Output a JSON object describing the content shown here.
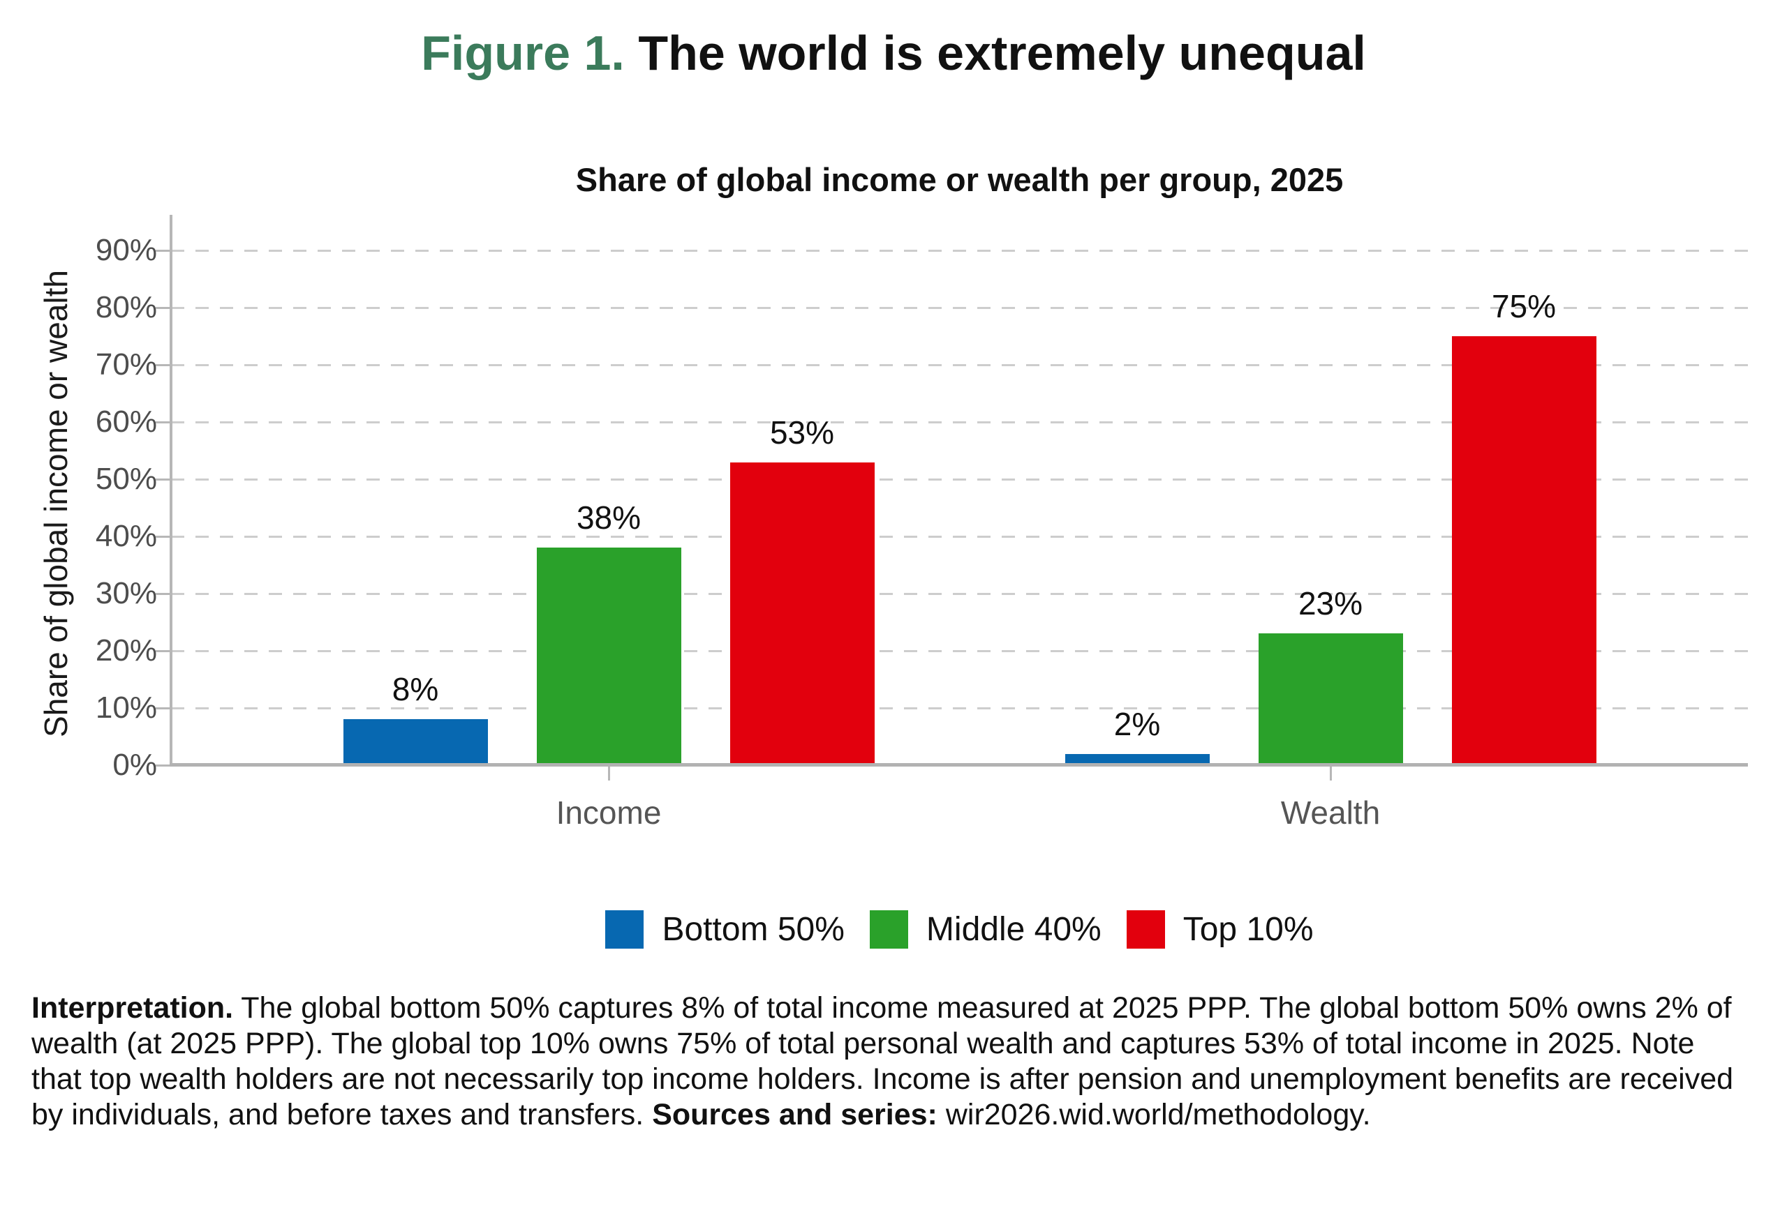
{
  "header": {
    "figure_label": "Figure 1.",
    "title": "The world is extremely unequal"
  },
  "colors": {
    "figure_label_accent": "#3b7b5b",
    "bottom50_blue": "#0768b1",
    "middle40_green": "#2aa12a",
    "top10_red": "#e2000d",
    "axis_gray": "#b7b7b7",
    "gridline_gray": "#cdcdcd",
    "tick_text_gray": "#4d4d4d",
    "category_text_gray": "#555555"
  },
  "chart_data": {
    "type": "bar",
    "title": "Share of global income or wealth per group, 2025",
    "categories": [
      "Income",
      "Wealth"
    ],
    "series": [
      {
        "name": "Bottom 50%",
        "color": "#0768b1",
        "values": [
          8,
          2
        ]
      },
      {
        "name": "Middle 40%",
        "color": "#2aa12a",
        "values": [
          38,
          23
        ]
      },
      {
        "name": "Top 10%",
        "color": "#e2000d",
        "values": [
          53,
          75
        ]
      }
    ],
    "bar_value_labels": [
      [
        "8%",
        "38%",
        "53%"
      ],
      [
        "2%",
        "23%",
        "75%"
      ]
    ],
    "xlabel": "",
    "ylabel": "Share of global income or wealth",
    "ylim": [
      0,
      96
    ],
    "yticks": [
      "0%",
      "10%",
      "20%",
      "30%",
      "40%",
      "50%",
      "60%",
      "70%",
      "80%",
      "90%"
    ],
    "grid": "horizontal-dashed",
    "legend_position": "bottom"
  },
  "interpretation": {
    "lead_bold": "Interpretation.",
    "body": " The global bottom 50% captures 8% of total income measured at 2025 PPP. The global bottom 50% owns 2% of wealth (at 2025 PPP). The global top 10% owns 75% of total personal wealth and captures 53% of total income in 2025. Note that top wealth holders are not necessarily top income holders. Income is after pension and unemployment benefits are received by individuals, and before taxes and transfers. ",
    "sources_bold": "Sources and series:",
    "sources_text": " wir2026.wid.world/methodology."
  }
}
